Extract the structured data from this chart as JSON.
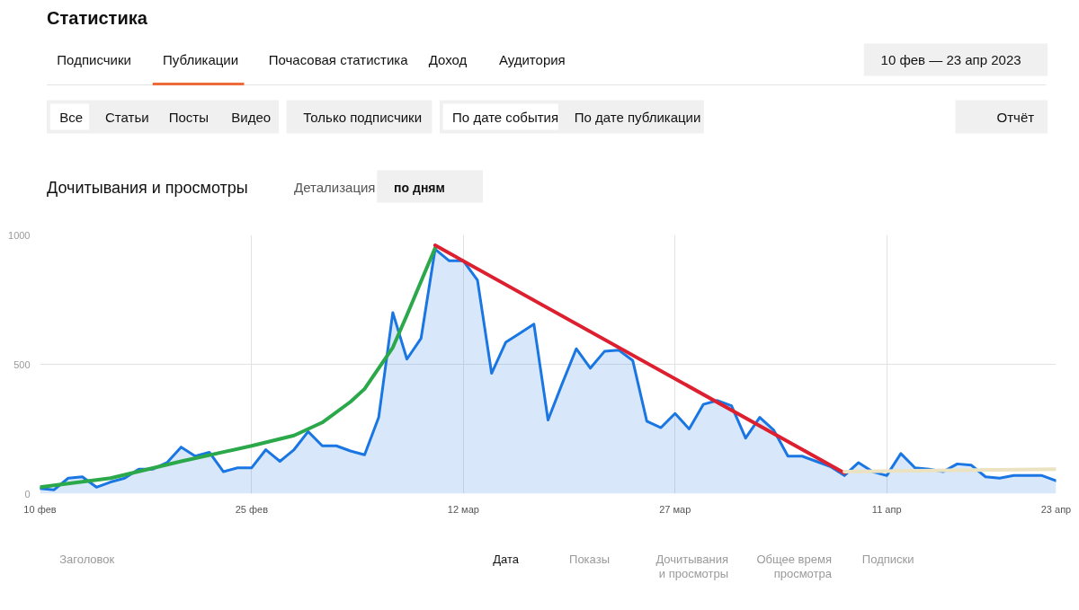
{
  "chart_data": {
    "type": "area",
    "title": "Дочитывания и просмотры",
    "x": [
      "2023-02-10",
      "2023-02-11",
      "2023-02-12",
      "2023-02-13",
      "2023-02-14",
      "2023-02-15",
      "2023-02-16",
      "2023-02-17",
      "2023-02-18",
      "2023-02-19",
      "2023-02-20",
      "2023-02-21",
      "2023-02-22",
      "2023-02-23",
      "2023-02-24",
      "2023-02-25",
      "2023-02-26",
      "2023-02-27",
      "2023-02-28",
      "2023-03-01",
      "2023-03-02",
      "2023-03-03",
      "2023-03-04",
      "2023-03-05",
      "2023-03-06",
      "2023-03-07",
      "2023-03-08",
      "2023-03-09",
      "2023-03-10",
      "2023-03-11",
      "2023-03-12",
      "2023-03-13",
      "2023-03-14",
      "2023-03-15",
      "2023-03-16",
      "2023-03-17",
      "2023-03-18",
      "2023-03-19",
      "2023-03-20",
      "2023-03-21",
      "2023-03-22",
      "2023-03-23",
      "2023-03-24",
      "2023-03-25",
      "2023-03-26",
      "2023-03-27",
      "2023-03-28",
      "2023-03-29",
      "2023-03-30",
      "2023-03-31",
      "2023-04-01",
      "2023-04-02",
      "2023-04-03",
      "2023-04-04",
      "2023-04-05",
      "2023-04-06",
      "2023-04-07",
      "2023-04-08",
      "2023-04-09",
      "2023-04-10",
      "2023-04-11",
      "2023-04-12",
      "2023-04-13",
      "2023-04-14",
      "2023-04-15",
      "2023-04-16",
      "2023-04-17",
      "2023-04-18",
      "2023-04-19",
      "2023-04-20",
      "2023-04-21",
      "2023-04-22",
      "2023-04-23"
    ],
    "xlim": [
      "2023-02-10",
      "2023-04-23"
    ],
    "xticks": [
      {
        "value": "2023-02-10",
        "label": "10 фев"
      },
      {
        "value": "2023-02-25",
        "label": "25 фев"
      },
      {
        "value": "2023-03-12",
        "label": "12 мар"
      },
      {
        "value": "2023-03-27",
        "label": "27 мар"
      },
      {
        "value": "2023-04-11",
        "label": "11 апр"
      },
      {
        "value": "2023-04-23",
        "label": "23 апр"
      }
    ],
    "ylim": [
      0,
      1000
    ],
    "yticks": [
      0,
      500,
      1000
    ],
    "grid": true,
    "series": [
      {
        "color": "#1976e3",
        "values": [
          20,
          15,
          60,
          65,
          25,
          45,
          60,
          95,
          95,
          120,
          180,
          145,
          160,
          85,
          100,
          100,
          170,
          125,
          170,
          240,
          185,
          185,
          165,
          150,
          295,
          700,
          520,
          600,
          945,
          900,
          900,
          825,
          465,
          585,
          620,
          655,
          285,
          425,
          560,
          485,
          550,
          555,
          515,
          280,
          255,
          310,
          250,
          345,
          360,
          340,
          215,
          295,
          245,
          145,
          145,
          125,
          105,
          70,
          120,
          85,
          70,
          155,
          100,
          95,
          85,
          115,
          110,
          65,
          60,
          70,
          70,
          70,
          50
        ]
      },
      {
        "type": "line",
        "color": "#2ba84a",
        "x": [
          "2023-02-10",
          "2023-02-15",
          "2023-02-20",
          "2023-02-25",
          "2023-02-28",
          "2023-03-02",
          "2023-03-04",
          "2023-03-05",
          "2023-03-06",
          "2023-03-07",
          "2023-03-08",
          "2023-03-09",
          "2023-03-10"
        ],
        "values": [
          25,
          60,
          125,
          185,
          225,
          275,
          355,
          405,
          485,
          565,
          690,
          820,
          950
        ]
      },
      {
        "type": "line",
        "color": "#dd2030",
        "x": [
          "2023-03-10",
          "2023-04-08"
        ],
        "values": [
          960,
          80
        ]
      },
      {
        "type": "line",
        "color": "#ebe2c2",
        "x": [
          "2023-04-08",
          "2023-04-23"
        ],
        "values": [
          85,
          95
        ]
      }
    ],
    "annotations": [
      "Статистика",
      "Подписчики",
      "Публикации",
      "Почасовая статистика",
      "Доход",
      "Аудитория",
      "10 фев — 23 апр 2023",
      "Все",
      "Статьи",
      "Посты",
      "Видео",
      "Только подписчики",
      "По дате события",
      "По дате публикации",
      "Отчёт",
      "Детализация",
      "по дням",
      "Заголовок",
      "Дата",
      "Показы",
      "Дочитывания и просмотры",
      "Общее время просмотра",
      "Подписки"
    ]
  }
}
